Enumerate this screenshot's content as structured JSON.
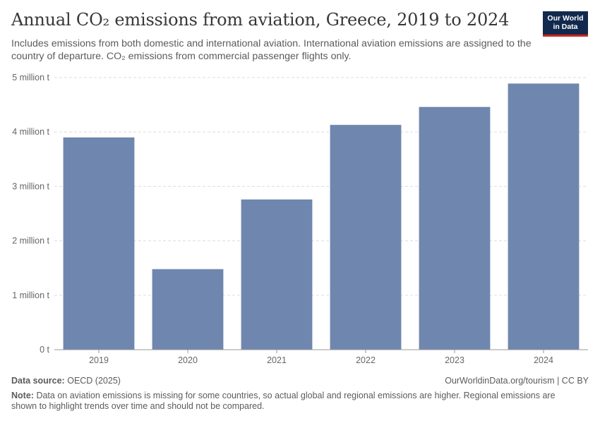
{
  "header": {
    "title": "Annual CO₂ emissions from aviation, Greece, 2019 to 2024",
    "subtitle": "Includes emissions from both domestic and international aviation. International aviation emissions are assigned to the country of departure. CO₂ emissions from commercial passenger flights only.",
    "logo_line1": "Our World",
    "logo_line2": "in Data"
  },
  "footer": {
    "source_label": "Data source:",
    "source_value": "OECD (2025)",
    "url": "OurWorldinData.org/tourism | CC BY",
    "note_label": "Note:",
    "note_text": "Data on aviation emissions is missing for some countries, so actual global and regional emissions are higher. Regional emissions are shown to highlight trends over time and should not be compared."
  },
  "colors": {
    "bar": "#6f87ae",
    "grid": "#dddddd",
    "axis": "#999999",
    "logo_bg": "#12294e",
    "logo_accent": "#ce261e"
  },
  "chart_data": {
    "type": "bar",
    "title": "Annual CO₂ emissions from aviation, Greece, 2019 to 2024",
    "xlabel": "",
    "ylabel": "",
    "categories": [
      "2019",
      "2020",
      "2021",
      "2022",
      "2023",
      "2024"
    ],
    "values": [
      3900000,
      1480000,
      2760000,
      4130000,
      4460000,
      4890000
    ],
    "unit": "t",
    "ylim": [
      0,
      5000000
    ],
    "yticks": [
      0,
      1000000,
      2000000,
      3000000,
      4000000,
      5000000
    ],
    "ytick_labels": [
      "0 t",
      "1 million t",
      "2 million t",
      "3 million t",
      "4 million t",
      "5 million t"
    ],
    "grid": true
  }
}
